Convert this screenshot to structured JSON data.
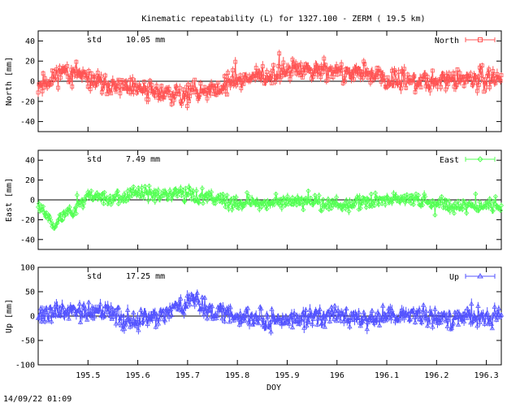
{
  "chart_data": {
    "type": "line",
    "title": "Kinematic repeatability (L) for 1327.100 - ZERM  ( 19.5 km)",
    "xlabel": "DOY",
    "x_range": [
      195.4,
      196.33
    ],
    "x_ticks": [
      "195.5",
      "195.6",
      "195.7",
      "195.8",
      "195.9",
      "196",
      "196.1",
      "196.2",
      "196.3"
    ],
    "x_tick_values": [
      195.5,
      195.6,
      195.7,
      195.8,
      195.9,
      196.0,
      196.1,
      196.2,
      196.3
    ],
    "footer": "14/09/22 01:09",
    "panels": [
      {
        "name": "North",
        "ylabel": "North [mm]",
        "legend": "North",
        "color": "#ff5555",
        "marker": "square",
        "std_label": "std",
        "std_value": "10.05 mm",
        "ylim": [
          -50,
          50
        ],
        "yticks": [
          "40",
          "20",
          "0",
          "-20",
          "-40"
        ],
        "ytick_values": [
          40,
          20,
          0,
          -20,
          -40
        ],
        "trend": {
          "x": [
            195.4,
            195.45,
            195.5,
            195.55,
            195.6,
            195.65,
            195.7,
            195.75,
            195.8,
            195.85,
            195.9,
            195.95,
            196.0,
            196.05,
            196.1,
            196.15,
            196.2,
            196.25,
            196.3,
            196.33
          ],
          "y": [
            -5,
            10,
            2,
            -5,
            -8,
            -12,
            -12,
            -8,
            2,
            6,
            10,
            12,
            10,
            6,
            2,
            0,
            0,
            2,
            3,
            4
          ]
        },
        "noise": 7,
        "seed": 11
      },
      {
        "name": "East",
        "ylabel": "East [mm]",
        "legend": "East",
        "color": "#55ff55",
        "marker": "diamond",
        "std_label": "std",
        "std_value": "7.49 mm",
        "ylim": [
          -50,
          50
        ],
        "yticks": [
          "40",
          "20",
          "0",
          "-20",
          "-40"
        ],
        "ytick_values": [
          40,
          20,
          0,
          -20,
          -40
        ],
        "trend": {
          "x": [
            195.4,
            195.42,
            195.43,
            195.45,
            195.47,
            195.5,
            195.55,
            195.6,
            195.65,
            195.7,
            195.75,
            195.8,
            195.85,
            195.9,
            195.95,
            196.0,
            196.05,
            196.1,
            196.15,
            196.2,
            196.25,
            196.3,
            196.33
          ],
          "y": [
            -5,
            -15,
            -28,
            -15,
            -10,
            5,
            0,
            8,
            5,
            5,
            2,
            -5,
            -2,
            -2,
            -2,
            -5,
            -2,
            0,
            2,
            -5,
            -5,
            -5,
            -5
          ]
        },
        "noise": 5,
        "seed": 23
      },
      {
        "name": "Up",
        "ylabel": "Up [mm]",
        "legend": "Up",
        "color": "#5555ff",
        "marker": "triangle",
        "std_label": "std",
        "std_value": "17.25 mm",
        "ylim": [
          -100,
          100
        ],
        "yticks": [
          "100",
          "50",
          "0",
          "-50",
          "-100"
        ],
        "ytick_values": [
          100,
          50,
          0,
          -50,
          -100
        ],
        "trend": {
          "x": [
            195.4,
            195.45,
            195.5,
            195.55,
            195.6,
            195.65,
            195.7,
            195.72,
            195.75,
            195.8,
            195.85,
            195.9,
            195.95,
            196.0,
            196.05,
            196.1,
            196.15,
            196.2,
            196.25,
            196.3,
            196.33
          ],
          "y": [
            5,
            10,
            8,
            5,
            -15,
            5,
            25,
            30,
            10,
            0,
            -5,
            -5,
            -5,
            0,
            -5,
            0,
            5,
            -5,
            -5,
            0,
            -5
          ]
        },
        "noise": 14,
        "seed": 37
      }
    ]
  }
}
